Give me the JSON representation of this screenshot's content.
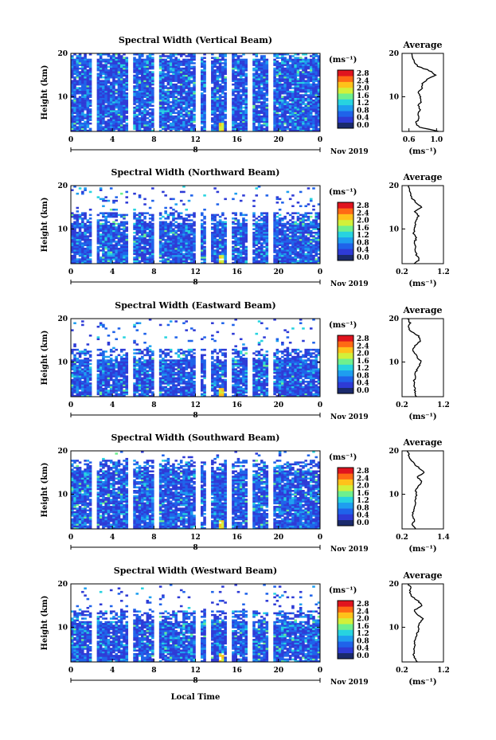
{
  "figure": {
    "xlabel": "Local Time",
    "date_label": "Nov 2019",
    "day_label": "8",
    "colorbar": {
      "unit": "(ms⁻¹)",
      "ticks": [
        "0.0",
        "0.4",
        "0.8",
        "1.2",
        "1.6",
        "2.0",
        "2.4",
        "2.8"
      ],
      "colors": [
        "#1a2a6c",
        "#2e3bd6",
        "#1f63ea",
        "#1e9ef0",
        "#27d3e0",
        "#6ef08e",
        "#d2f03a",
        "#ffc21a",
        "#ff6a14",
        "#e0141e"
      ]
    },
    "avg_title": "Average",
    "avg_unit": "(ms⁻¹)"
  },
  "chart_data": [
    {
      "type": "heatmap",
      "title": "Spectral Width (Vertical Beam)",
      "ylabel": "Height (km)",
      "xlim": [
        0,
        24
      ],
      "ylim": [
        2,
        20
      ],
      "x_ticks": [
        "0",
        "4",
        "8",
        "12",
        "16",
        "20",
        "0"
      ],
      "y_ticks": [
        "10",
        "20"
      ],
      "cbar_ticks": [
        "0.0",
        "0.4",
        "0.8",
        "1.2",
        "1.6",
        "2.0",
        "2.4",
        "2.8"
      ],
      "gaps_hours": [
        2.2,
        5.8,
        8.2,
        12.2,
        13.2,
        15.2,
        17.2,
        19.2
      ],
      "top_km": 19.8,
      "average": {
        "title": "Average",
        "xlabel": "(ms⁻¹)",
        "x_ticks": [
          "0.6",
          "1.0"
        ],
        "xlim": [
          0.5,
          1.1
        ],
        "heights_km": [
          2,
          3,
          4,
          5,
          6,
          7,
          8,
          9,
          10,
          11,
          12,
          13,
          14,
          15,
          16,
          17,
          18,
          19,
          20
        ],
        "values": [
          1.04,
          0.74,
          0.7,
          0.75,
          0.72,
          0.76,
          0.74,
          0.78,
          0.77,
          0.74,
          0.79,
          0.8,
          0.86,
          0.98,
          0.9,
          0.73,
          0.68,
          0.66,
          0.64
        ]
      }
    },
    {
      "type": "heatmap",
      "title": "Spectral Width (Northward Beam)",
      "ylabel": "Height (km)",
      "xlim": [
        0,
        24
      ],
      "ylim": [
        2,
        20
      ],
      "x_ticks": [
        "0",
        "4",
        "8",
        "12",
        "16",
        "20",
        "0"
      ],
      "y_ticks": [
        "10",
        "20"
      ],
      "cbar_ticks": [
        "0.0",
        "0.4",
        "0.8",
        "1.2",
        "1.6",
        "2.0",
        "2.4",
        "2.8"
      ],
      "gaps_hours": [
        2.2,
        5.8,
        8.2,
        12.2,
        13.2,
        15.2,
        17.2,
        19.2
      ],
      "top_km": 12.5,
      "average": {
        "title": "Average",
        "xlabel": "(ms⁻¹)",
        "x_ticks": [
          "0.2",
          "1.2"
        ],
        "xlim": [
          0.2,
          1.2
        ],
        "heights_km": [
          2,
          3,
          4,
          5,
          6,
          7,
          8,
          9,
          10,
          11,
          12,
          13,
          14,
          15,
          16,
          17,
          18,
          19,
          20
        ],
        "values": [
          0.5,
          0.62,
          0.55,
          0.5,
          0.52,
          0.5,
          0.55,
          0.48,
          0.5,
          0.52,
          0.55,
          0.6,
          0.5,
          0.68,
          0.55,
          0.45,
          0.4,
          0.38,
          0.36
        ]
      }
    },
    {
      "type": "heatmap",
      "title": "Spectral Width (Eastward Beam)",
      "ylabel": "Height (km)",
      "xlim": [
        0,
        24
      ],
      "ylim": [
        2,
        20
      ],
      "x_ticks": [
        "0",
        "4",
        "8",
        "12",
        "16",
        "20",
        "0"
      ],
      "y_ticks": [
        "10",
        "20"
      ],
      "cbar_ticks": [
        "0.0",
        "0.4",
        "0.8",
        "1.2",
        "1.6",
        "2.0",
        "2.4",
        "2.8"
      ],
      "gaps_hours": [
        2.2,
        5.8,
        8.2,
        12.2,
        13.2,
        15.2,
        17.2,
        19.2
      ],
      "top_km": 11.5,
      "average": {
        "title": "Average",
        "xlabel": "(ms⁻¹)",
        "x_ticks": [
          "0.2",
          "1.2"
        ],
        "xlim": [
          0.2,
          1.2
        ],
        "heights_km": [
          2,
          3,
          4,
          5,
          6,
          7,
          8,
          9,
          10,
          11,
          12,
          13,
          14,
          15,
          16,
          17,
          18,
          19,
          20
        ],
        "values": [
          0.55,
          0.5,
          0.52,
          0.48,
          0.5,
          0.52,
          0.55,
          0.6,
          0.66,
          0.58,
          0.5,
          0.45,
          0.55,
          0.65,
          0.6,
          0.42,
          0.35,
          0.4,
          0.33
        ]
      }
    },
    {
      "type": "heatmap",
      "title": "Spectral Width (Southward Beam)",
      "ylabel": "Height (km)",
      "xlim": [
        0,
        24
      ],
      "ylim": [
        2,
        20
      ],
      "x_ticks": [
        "0",
        "4",
        "8",
        "12",
        "16",
        "20",
        "0"
      ],
      "y_ticks": [
        "10",
        "20"
      ],
      "cbar_ticks": [
        "0.0",
        "0.4",
        "0.8",
        "1.2",
        "1.6",
        "2.0",
        "2.4",
        "2.8"
      ],
      "gaps_hours": [
        2.2,
        5.8,
        8.2,
        12.2,
        13.2,
        15.2,
        17.2,
        19.2
      ],
      "top_km": 16.5,
      "average": {
        "title": "Average",
        "xlabel": "(ms⁻¹)",
        "x_ticks": [
          "0.2",
          "1.4"
        ],
        "xlim": [
          0.2,
          1.4
        ],
        "heights_km": [
          2,
          3,
          4,
          5,
          6,
          7,
          8,
          9,
          10,
          11,
          12,
          13,
          14,
          15,
          16,
          17,
          18,
          19,
          20
        ],
        "values": [
          0.6,
          0.5,
          0.55,
          0.5,
          0.52,
          0.55,
          0.58,
          0.6,
          0.62,
          0.6,
          0.7,
          0.75,
          0.65,
          0.85,
          0.7,
          0.55,
          0.45,
          0.4,
          0.35
        ]
      }
    },
    {
      "type": "heatmap",
      "title": "Spectral Width (Westward Beam)",
      "ylabel": "Height (km)",
      "xlim": [
        0,
        24
      ],
      "ylim": [
        2,
        20
      ],
      "x_ticks": [
        "0",
        "4",
        "8",
        "12",
        "16",
        "20",
        "0"
      ],
      "y_ticks": [
        "10",
        "20"
      ],
      "cbar_ticks": [
        "0.0",
        "0.4",
        "0.8",
        "1.2",
        "1.6",
        "2.0",
        "2.4",
        "2.8"
      ],
      "gaps_hours": [
        2.2,
        5.8,
        8.2,
        12.2,
        13.2,
        15.2,
        17.2,
        19.2
      ],
      "top_km": 12.5,
      "average": {
        "title": "Average",
        "xlabel": "(ms⁻¹)",
        "x_ticks": [
          "0.2",
          "1.2"
        ],
        "xlim": [
          0.2,
          1.2
        ],
        "heights_km": [
          2,
          3,
          4,
          5,
          6,
          7,
          8,
          9,
          10,
          11,
          12,
          13,
          14,
          15,
          16,
          17,
          18,
          19,
          20
        ],
        "values": [
          0.55,
          0.5,
          0.48,
          0.5,
          0.52,
          0.5,
          0.55,
          0.58,
          0.6,
          0.62,
          0.7,
          0.55,
          0.5,
          0.68,
          0.6,
          0.45,
          0.38,
          0.42,
          0.35
        ]
      }
    }
  ]
}
